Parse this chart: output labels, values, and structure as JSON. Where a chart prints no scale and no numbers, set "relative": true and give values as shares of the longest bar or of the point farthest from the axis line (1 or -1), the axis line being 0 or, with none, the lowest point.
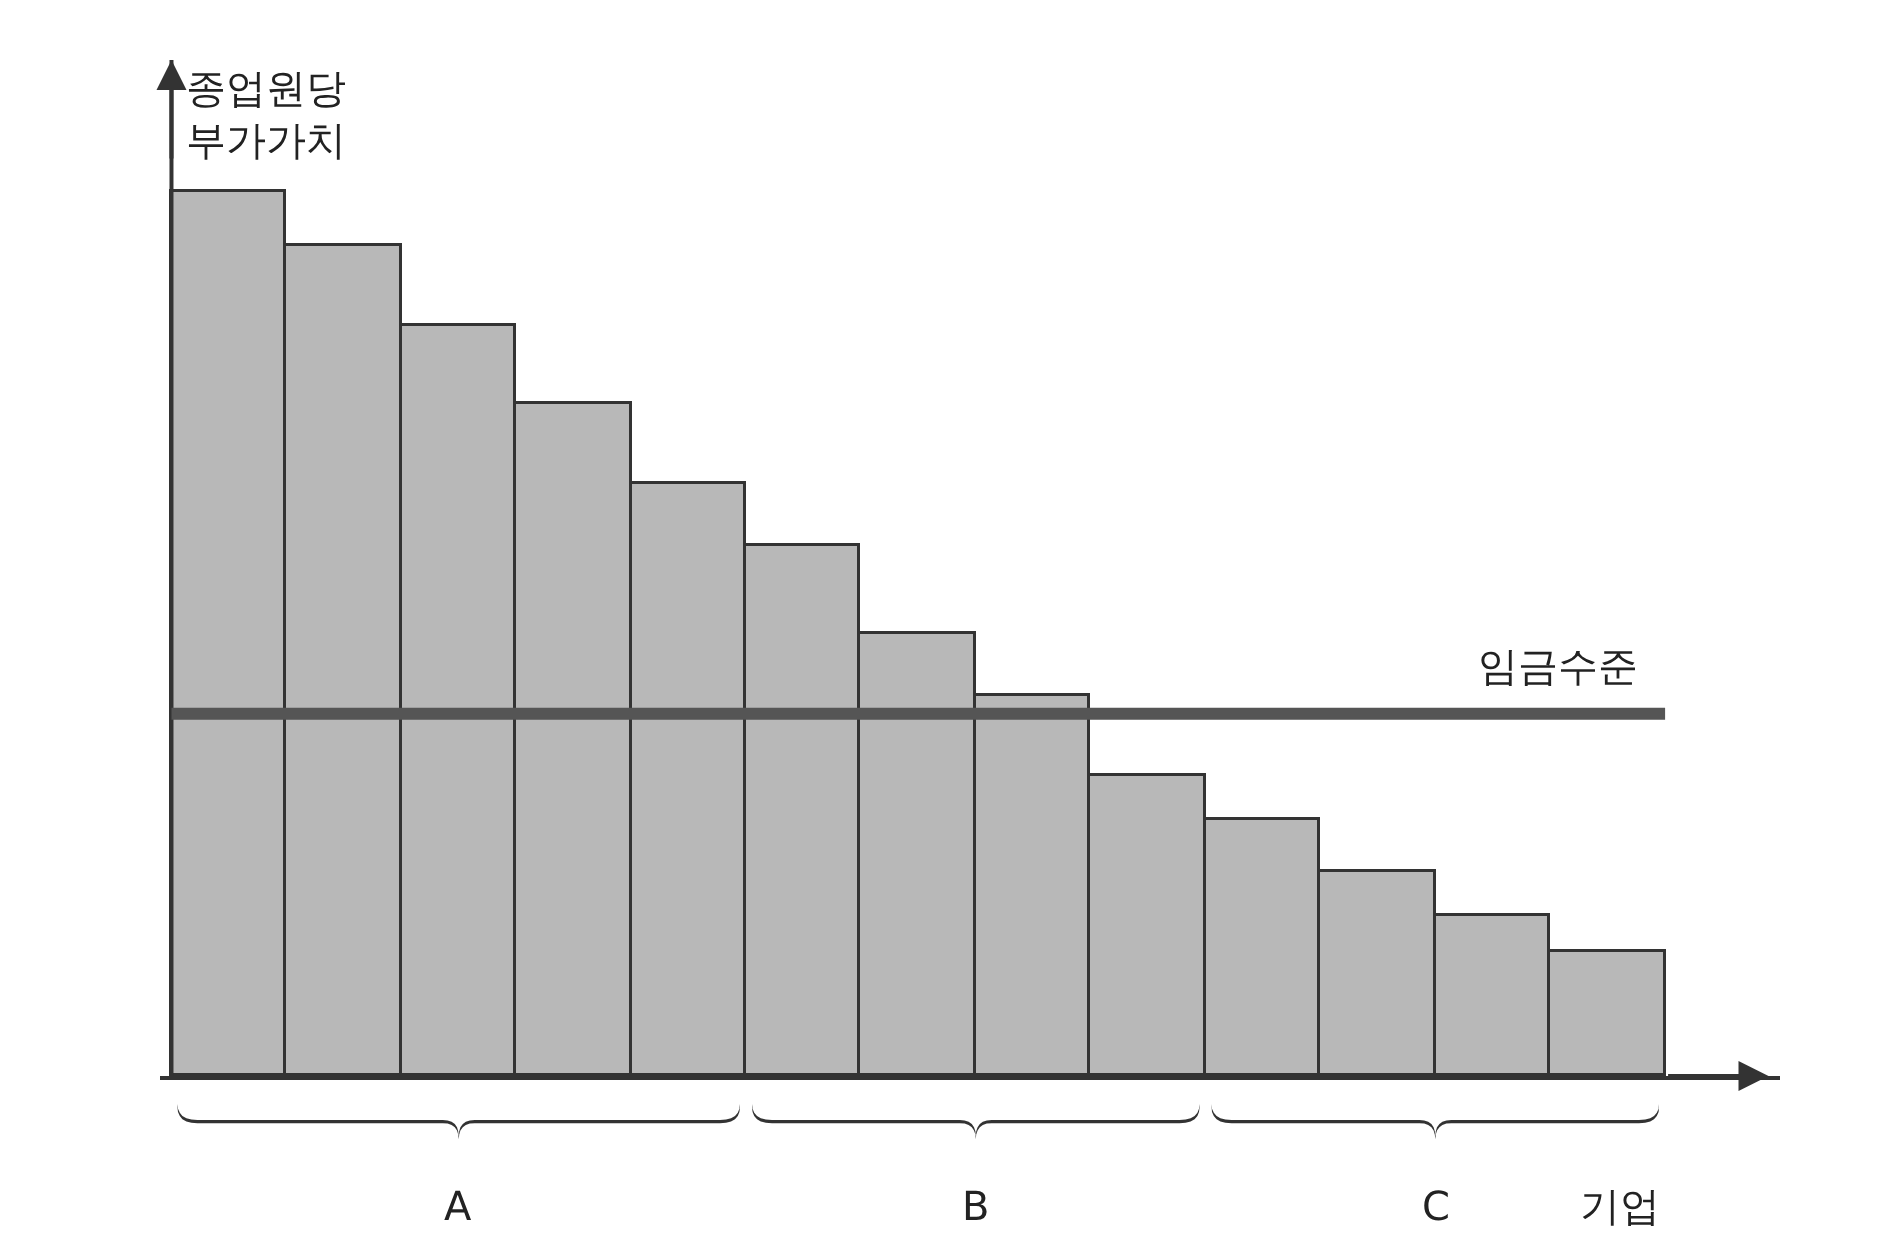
{
  "chart_data": {
    "type": "bar",
    "relative": true,
    "ylabel": "종업원당\n부가가치",
    "xlabel": "기업",
    "categories": [
      null,
      null,
      null,
      null,
      null,
      null,
      null,
      null,
      null,
      null,
      null,
      null,
      null
    ],
    "values": [
      1,
      0.94,
      0.85,
      0.76,
      0.67,
      0.6,
      0.5,
      0.43,
      0.34,
      0.29,
      0.23,
      0.18,
      0.14
    ],
    "color": "#b8b8b8",
    "ref_lines": [
      {
        "axis": "y",
        "value": 0.41,
        "label": "임금수준",
        "color": "#555555"
      }
    ],
    "annotations": [
      "A",
      "B",
      "C"
    ]
  }
}
